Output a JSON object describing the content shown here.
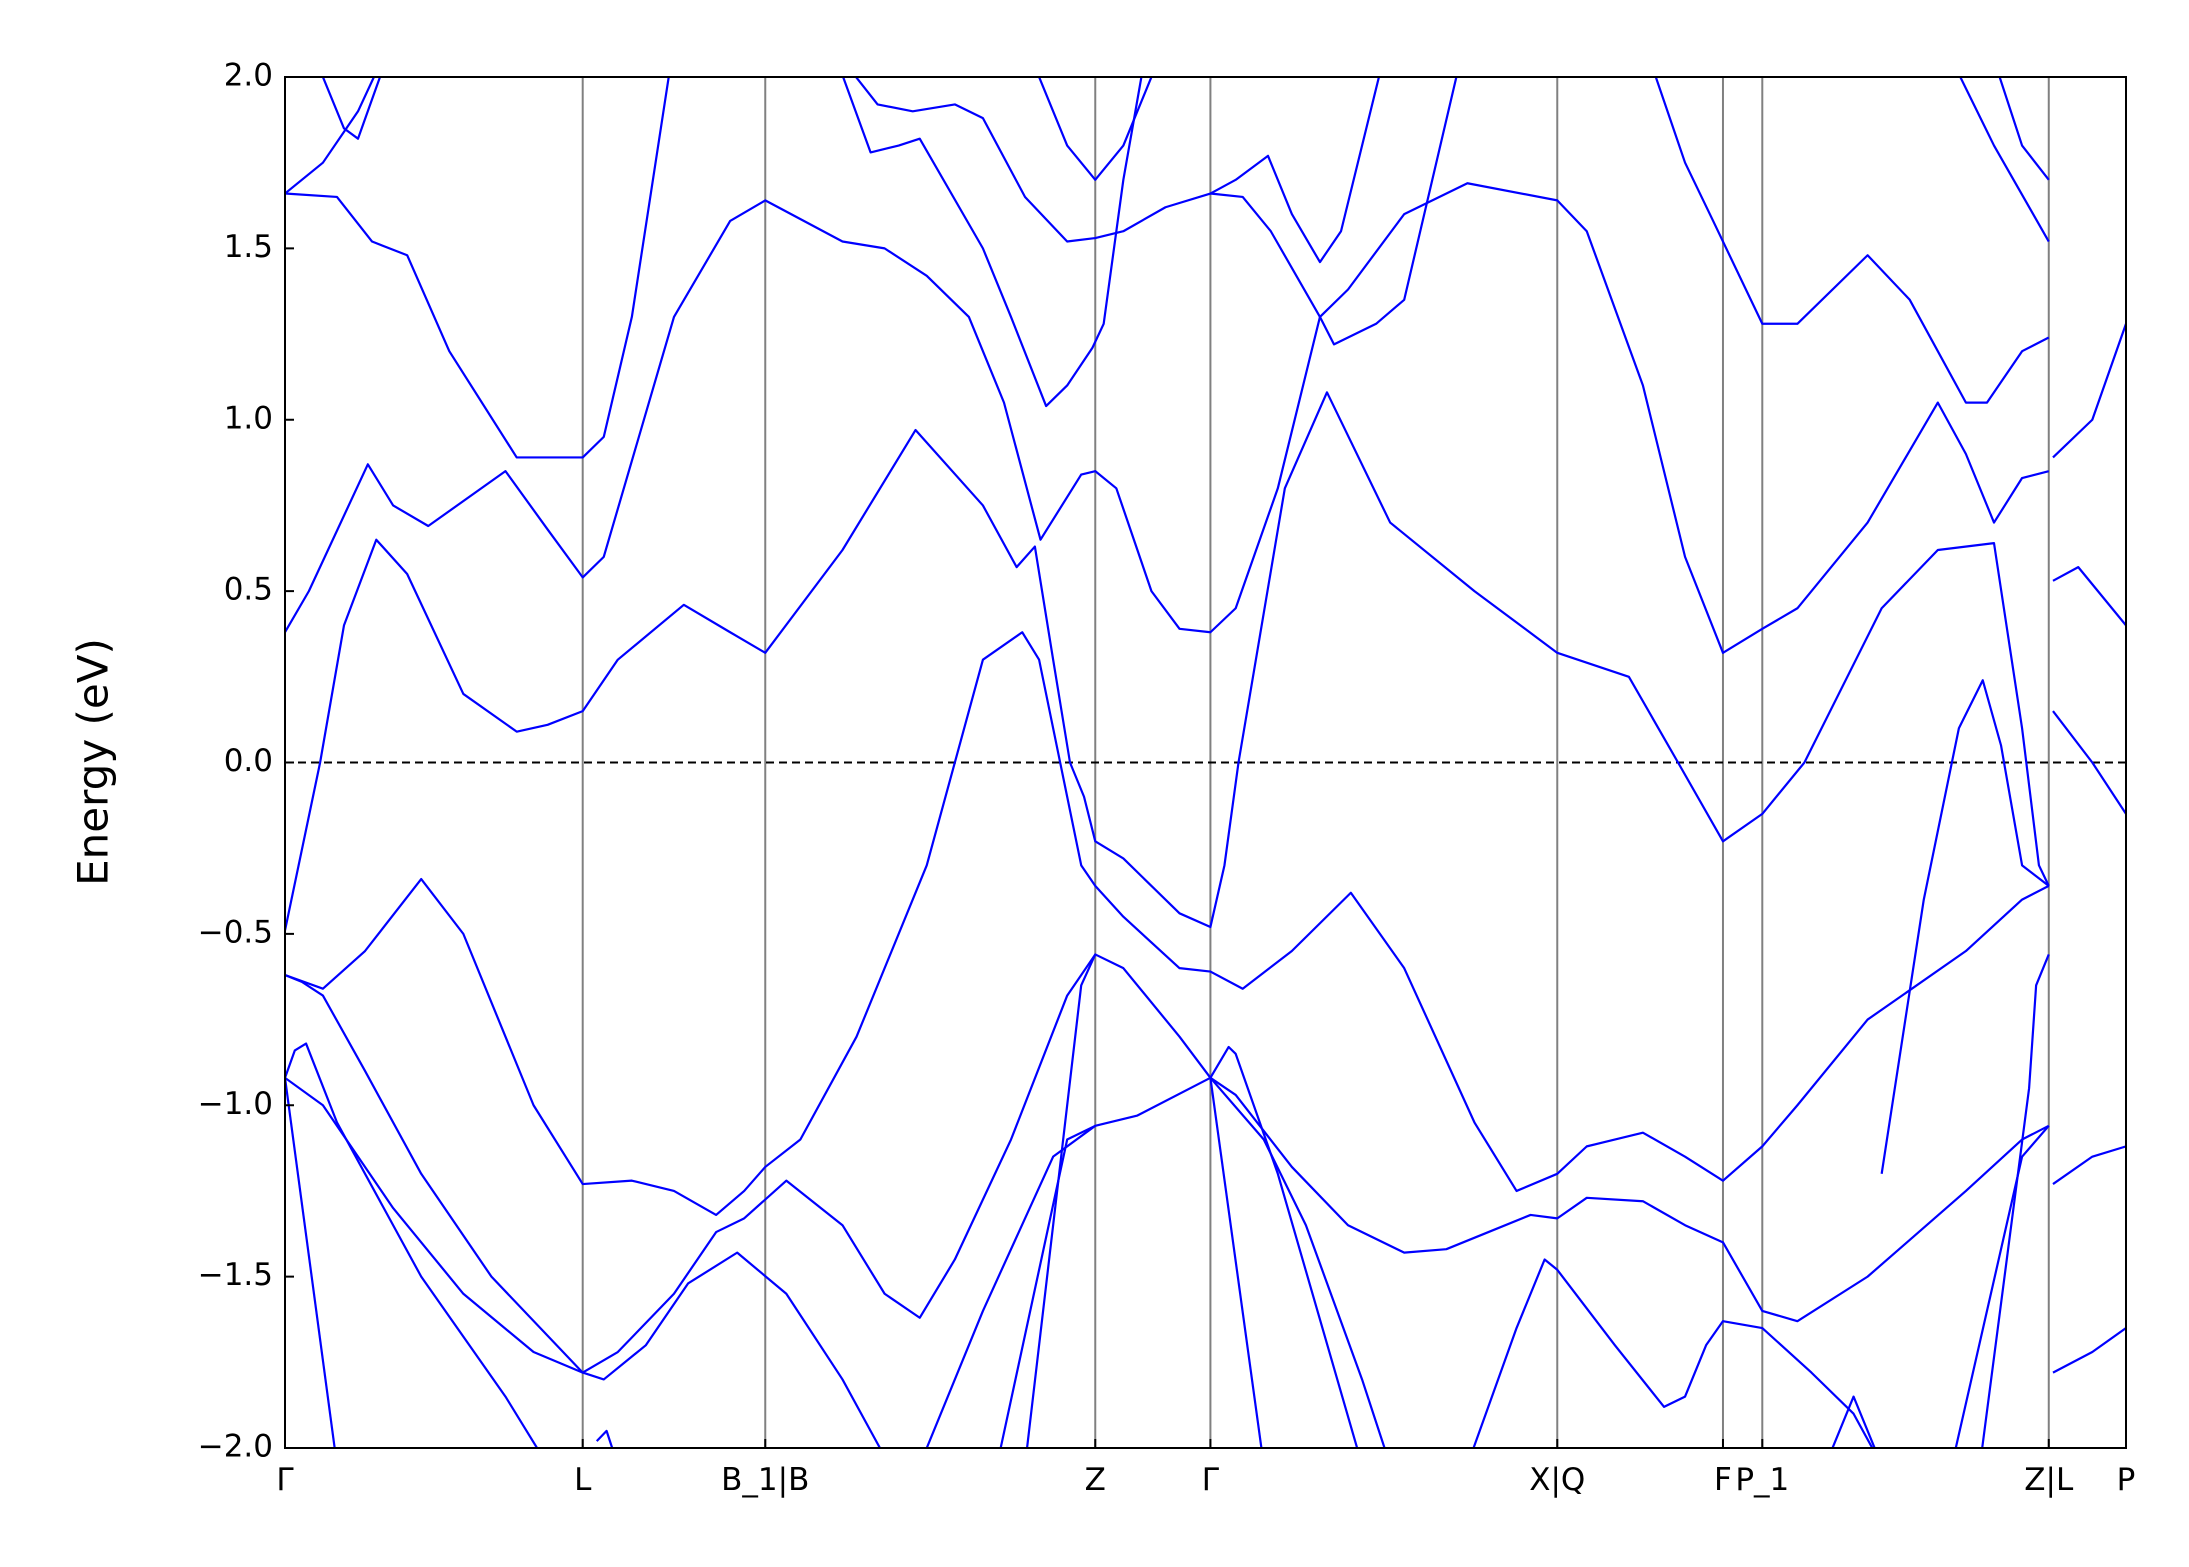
{
  "chart_data": {
    "type": "line",
    "ylabel": "Energy (eV)",
    "xlim": [
      0,
      1311
    ],
    "ylim": [
      -2.0,
      2.0
    ],
    "xticks": [
      {
        "value": 0,
        "label": "Γ"
      },
      {
        "value": 212,
        "label": "L"
      },
      {
        "value": 342,
        "label": "B_1|B"
      },
      {
        "value": 577,
        "label": "Z"
      },
      {
        "value": 659,
        "label": "Γ"
      },
      {
        "value": 906,
        "label": "X|Q"
      },
      {
        "value": 1024,
        "label": "F"
      },
      {
        "value": 1052,
        "label": "P_1"
      },
      {
        "value": 1256,
        "label": "Z|L"
      },
      {
        "value": 1311,
        "label": "P"
      }
    ],
    "yticks": [
      {
        "value": -2.0,
        "label": "−2.0"
      },
      {
        "value": -1.5,
        "label": "−1.5"
      },
      {
        "value": -1.0,
        "label": "−1.0"
      },
      {
        "value": -0.5,
        "label": "−0.5"
      },
      {
        "value": 0.0,
        "label": "0.0"
      },
      {
        "value": 0.5,
        "label": "0.5"
      },
      {
        "value": 1.0,
        "label": "1.0"
      },
      {
        "value": 1.5,
        "label": "1.5"
      },
      {
        "value": 2.0,
        "label": "2.0"
      }
    ],
    "hline": 0,
    "vline_color": "#808080",
    "series": [
      {
        "color": "#0000ff",
        "x": [
          0,
          25,
          42,
          65,
          87,
          127,
          165,
          187,
          212,
          237,
          284,
          317,
          342,
          397,
          449,
          497,
          521,
          534,
          547,
          559,
          569,
          577,
          597,
          637,
          659,
          669,
          679,
          712,
          742,
          787,
          847,
          906,
          957,
          992,
          1024,
          1052,
          1082,
          1137,
          1177,
          1217,
          1237,
          1249,
          1256,
          1257,
          1259,
          1287,
          1311
        ],
        "values": [
          -0.49,
          0.0,
          0.4,
          0.65,
          0.55,
          0.2,
          0.09,
          0.11,
          0.15,
          0.3,
          0.46,
          0.38,
          0.32,
          0.62,
          0.97,
          0.75,
          0.57,
          0.63,
          0.3,
          0.0,
          -0.1,
          -0.23,
          -0.28,
          -0.44,
          -0.48,
          -0.3,
          0.0,
          0.8,
          1.08,
          0.7,
          0.5,
          0.32,
          0.25,
          0.0,
          -0.23,
          -0.15,
          0.0,
          0.45,
          0.62,
          0.64,
          0.1,
          -0.3,
          -0.36,
          null,
          0.15,
          0.0,
          -0.15
        ]
      },
      {
        "color": "#0000ff",
        "x": [
          0,
          17,
          59,
          77,
          102,
          157,
          187,
          212,
          227,
          277,
          317,
          342,
          397,
          427,
          457,
          487,
          512,
          538,
          567,
          577,
          592,
          617,
          637,
          659,
          677,
          707,
          737,
          757,
          797,
          842,
          906,
          927,
          967,
          997,
          1024,
          1052,
          1077,
          1127,
          1177,
          1197,
          1217,
          1237,
          1256,
          1257,
          1259,
          1277,
          1311
        ],
        "values": [
          0.38,
          0.5,
          0.87,
          0.75,
          0.69,
          0.85,
          0.68,
          0.54,
          0.6,
          1.3,
          1.58,
          1.64,
          1.52,
          1.5,
          1.42,
          1.3,
          1.05,
          0.65,
          0.84,
          0.85,
          0.8,
          0.5,
          0.39,
          0.38,
          0.45,
          0.8,
          1.3,
          1.38,
          1.6,
          1.69,
          1.64,
          1.55,
          1.1,
          0.6,
          0.32,
          0.39,
          0.45,
          0.7,
          1.05,
          0.9,
          0.7,
          0.83,
          0.85,
          null,
          0.53,
          0.57,
          0.4
        ]
      },
      {
        "color": "#0000ff",
        "x": [
          0,
          37,
          62,
          87,
          117,
          165,
          212,
          227,
          247,
          277
        ],
        "values": [
          1.66,
          1.65,
          1.52,
          1.48,
          1.2,
          0.89,
          0.89,
          0.95,
          1.3,
          2.1
        ]
      },
      {
        "color": "#0000ff",
        "x": [
          0,
          27,
          52,
          69
        ],
        "values": [
          1.66,
          1.75,
          1.9,
          2.05
        ]
      },
      {
        "color": "#0000ff",
        "x": [
          393,
          417,
          437,
          452,
          497,
          517,
          542,
          557,
          575,
          583,
          597,
          612
        ],
        "values": [
          2.05,
          1.78,
          1.8,
          1.82,
          1.5,
          1.3,
          1.04,
          1.1,
          1.21,
          1.28,
          1.7,
          2.05
        ]
      },
      {
        "color": "#0000ff",
        "x": [
          397,
          422,
          447,
          477,
          497,
          527,
          557,
          577,
          597,
          627,
          659,
          682,
          702,
          737,
          747,
          777,
          797,
          837
        ],
        "values": [
          2.05,
          1.92,
          1.9,
          1.92,
          1.88,
          1.65,
          1.52,
          1.53,
          1.55,
          1.62,
          1.66,
          1.65,
          1.55,
          1.3,
          1.22,
          1.28,
          1.35,
          2.05
        ]
      },
      {
        "color": "#0000ff",
        "x": [
          532,
          557,
          577,
          597,
          622
        ],
        "values": [
          2.05,
          1.8,
          1.7,
          1.8,
          2.05
        ]
      },
      {
        "color": "#0000ff",
        "x": [
          659,
          677,
          700,
          717,
          737,
          752,
          782
        ],
        "values": [
          1.66,
          1.7,
          1.77,
          1.6,
          1.46,
          1.55,
          2.05
        ]
      },
      {
        "color": "#0000ff",
        "x": [
          972,
          997,
          1017,
          1052,
          1077,
          1127,
          1157,
          1197,
          1212,
          1237,
          1256,
          1257,
          1259,
          1287,
          1311
        ],
        "values": [
          2.05,
          1.75,
          1.58,
          1.28,
          1.28,
          1.48,
          1.35,
          1.05,
          1.05,
          1.2,
          1.24,
          null,
          0.89,
          1.0,
          1.28
        ]
      },
      {
        "color": "#0000ff",
        "x": [
          1187,
          1217,
          1256
        ],
        "values": [
          2.05,
          1.8,
          1.52
        ]
      },
      {
        "color": "#0000ff",
        "x": [
          1217,
          1237,
          1256
        ],
        "values": [
          2.05,
          1.8,
          1.7
        ]
      },
      {
        "color": "#0000ff",
        "x": [
          22,
          42,
          52,
          72
        ],
        "values": [
          2.05,
          1.85,
          1.82,
          2.05
        ]
      },
      {
        "color": "#0000ff",
        "x": [
          0,
          27,
          57,
          97,
          127,
          177,
          212,
          247,
          277,
          307,
          327,
          342,
          367,
          407,
          457,
          497,
          525,
          537,
          557,
          567,
          577,
          597,
          637,
          659,
          682,
          717,
          759,
          797,
          847,
          877,
          906,
          927,
          967,
          997,
          1024,
          1052,
          1077,
          1127,
          1197,
          1237,
          1256,
          1257,
          1259,
          1287,
          1311
        ],
        "values": [
          -0.62,
          -0.66,
          -0.55,
          -0.34,
          -0.5,
          -1.0,
          -1.23,
          -1.22,
          -1.25,
          -1.32,
          -1.25,
          -1.18,
          -1.1,
          -0.8,
          -0.3,
          0.3,
          0.38,
          0.3,
          -0.1,
          -0.3,
          -0.36,
          -0.45,
          -0.6,
          -0.61,
          -0.66,
          -0.55,
          -0.38,
          -0.6,
          -1.05,
          -1.25,
          -1.2,
          -1.12,
          -1.08,
          -1.15,
          -1.22,
          -1.12,
          -1.0,
          -0.75,
          -0.55,
          -0.4,
          -0.36,
          null,
          -1.23,
          -1.15,
          -1.12
        ]
      },
      {
        "color": "#0000ff",
        "x": [
          0,
          12,
          27,
          57,
          97,
          147,
          212,
          237,
          277,
          307,
          327,
          357,
          397,
          427,
          452,
          477,
          517,
          557,
          577,
          597,
          637,
          659,
          677,
          717,
          757,
          797,
          827,
          857,
          887,
          906,
          927,
          967,
          997,
          1024,
          1052,
          1077,
          1127,
          1197,
          1237,
          1256,
          1257,
          1259,
          1287,
          1311
        ],
        "values": [
          -0.62,
          -0.64,
          -0.68,
          -0.9,
          -1.2,
          -1.5,
          -1.78,
          -1.72,
          -1.55,
          -1.37,
          -1.33,
          -1.22,
          -1.35,
          -1.55,
          -1.62,
          -1.45,
          -1.1,
          -0.68,
          -0.56,
          -0.6,
          -0.8,
          -0.92,
          -0.97,
          -1.18,
          -1.35,
          -1.43,
          -1.42,
          -1.37,
          -1.32,
          -1.33,
          -1.27,
          -1.28,
          -1.35,
          -1.4,
          -1.6,
          -1.63,
          -1.5,
          -1.25,
          -1.1,
          -1.06,
          null,
          -1.78,
          -1.72,
          -1.65
        ]
      },
      {
        "color": "#0000ff",
        "x": [
          0,
          27,
          77,
          127,
          177,
          212,
          227,
          257,
          287,
          322,
          357,
          397,
          417,
          437
        ],
        "values": [
          -0.92,
          -1.0,
          -1.3,
          -1.55,
          -1.72,
          -1.78,
          -1.8,
          -1.7,
          -1.52,
          -1.43,
          -1.55,
          -1.8,
          -1.95,
          -2.1
        ]
      },
      {
        "color": "#0000ff",
        "x": [
          452,
          497,
          547,
          577,
          607,
          659,
          697,
          727,
          767,
          787
        ],
        "values": [
          -2.05,
          -1.6,
          -1.15,
          -1.06,
          -1.03,
          -0.92,
          -1.1,
          -1.35,
          -1.8,
          -2.05
        ]
      },
      {
        "color": "#0000ff",
        "x": [
          0,
          7,
          15,
          37,
          97,
          157,
          187
        ],
        "values": [
          -0.92,
          -0.84,
          -0.82,
          -1.05,
          -1.5,
          -1.85,
          -2.05
        ]
      },
      {
        "color": "#0000ff",
        "x": [
          0,
          37
        ],
        "values": [
          -0.92,
          -2.05
        ]
      },
      {
        "color": "#0000ff",
        "x": [
          507,
          557,
          577
        ],
        "values": [
          -2.05,
          -1.1,
          -1.06
        ]
      },
      {
        "color": "#0000ff",
        "x": [
          527,
          567,
          577
        ],
        "values": [
          -2.05,
          -0.65,
          -0.56
        ]
      },
      {
        "color": "#0000ff",
        "x": [
          659,
          672,
          677,
          707,
          767
        ],
        "values": [
          -0.92,
          -0.83,
          -0.85,
          -1.2,
          -2.05
        ]
      },
      {
        "color": "#0000ff",
        "x": [
          659,
          697
        ],
        "values": [
          -0.92,
          -2.05
        ]
      },
      {
        "color": "#0000ff",
        "x": [
          842,
          877,
          897,
          906,
          947,
          982,
          997,
          1012,
          1024,
          1052,
          1087,
          1117,
          1137
        ],
        "values": [
          -2.05,
          -1.65,
          -1.45,
          -1.48,
          -1.7,
          -1.88,
          -1.85,
          -1.7,
          -1.63,
          -1.65,
          -1.78,
          -1.9,
          -2.05
        ]
      },
      {
        "color": "#0000ff",
        "x": [
          1137,
          1167,
          1192,
          1209,
          1222,
          1237,
          1256
        ],
        "values": [
          -1.2,
          -0.4,
          0.1,
          0.24,
          0.05,
          -0.3,
          -0.36
        ]
      },
      {
        "color": "#0000ff",
        "x": [
          1187,
          1237,
          1256
        ],
        "values": [
          -2.05,
          -1.15,
          -1.06
        ]
      },
      {
        "color": "#0000ff",
        "x": [
          1207,
          1242,
          1247,
          1256
        ],
        "values": [
          -2.05,
          -0.95,
          -0.65,
          -0.56
        ]
      },
      {
        "color": "#0000ff",
        "x": [
          1097,
          1117,
          1137
        ],
        "values": [
          -2.05,
          -1.85,
          -2.05
        ]
      },
      {
        "color": "#0000ff",
        "x": [
          222,
          229,
          237
        ],
        "values": [
          -1.98,
          -1.95,
          -2.05
        ]
      }
    ]
  }
}
